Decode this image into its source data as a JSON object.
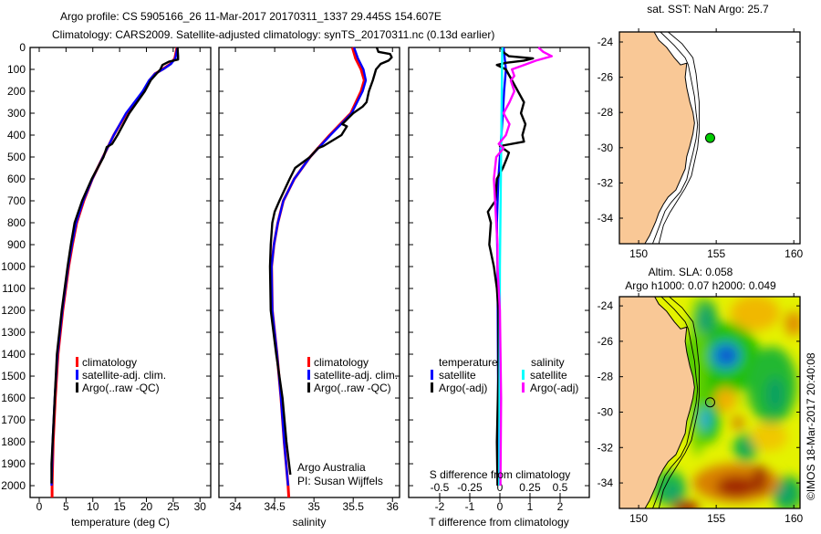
{
  "title": {
    "line1": "Argo profile: CS 5905166_26 11-Mar-2017 20170311_1337 29.445S 154.607E",
    "line2": "Climatology: CARS2009. Satellite-adjusted climatology: synTS_20170311.nc (0.13d earlier)"
  },
  "depth_ticks": [
    "0",
    "100",
    "200",
    "300",
    "400",
    "500",
    "600",
    "700",
    "800",
    "900",
    "1000",
    "1100",
    "1200",
    "1300",
    "1400",
    "1500",
    "1600",
    "1700",
    "1800",
    "1900",
    "2000"
  ],
  "chart_data": [
    {
      "type": "line",
      "panel": "temperature",
      "xlabel": "temperature (deg C)",
      "ylabel": "depth",
      "xlim": [
        -1.7,
        32
      ],
      "ylim": [
        2054,
        0
      ],
      "xticks": [
        0,
        5,
        10,
        15,
        20,
        25,
        30
      ],
      "legend": [
        {
          "label": "climatology",
          "color": "#ff0000"
        },
        {
          "label": "satellite-adj. clim.",
          "color": "#0000ff"
        },
        {
          "label": "Argo(..raw -QC)",
          "color": "#000000"
        }
      ],
      "series": [
        {
          "name": "climatology",
          "color": "#ff0000",
          "depth": [
            0,
            50,
            75,
            100,
            120,
            150,
            200,
            300,
            400,
            450,
            500,
            600,
            700,
            800,
            900,
            1000,
            1200,
            1400,
            1600,
            1800,
            2000,
            2054
          ],
          "values": [
            25.7,
            25.3,
            24.5,
            23.0,
            21.6,
            20.6,
            19.4,
            16.3,
            13.9,
            12.9,
            11.9,
            9.9,
            8.3,
            7.0,
            6.2,
            5.5,
            4.4,
            3.5,
            3.0,
            2.6,
            2.4,
            2.4
          ]
        },
        {
          "name": "satellite-adj. clim.",
          "color": "#0000ff",
          "depth": [
            0,
            50,
            75,
            100,
            120,
            150,
            200,
            300,
            400,
            450,
            500,
            600,
            700,
            800,
            900,
            1000,
            1200,
            1400,
            1600,
            1800,
            2000
          ],
          "values": [
            25.8,
            25.4,
            24.6,
            23.1,
            21.6,
            20.5,
            19.3,
            16.2,
            13.9,
            12.9,
            11.9,
            9.9,
            8.2,
            6.9,
            6.1,
            5.4,
            4.3,
            3.4,
            2.9,
            2.5,
            2.3
          ]
        },
        {
          "name": "Argo(..raw -QC)",
          "color": "#000000",
          "depth": [
            0,
            40,
            55,
            65,
            80,
            100,
            150,
            200,
            300,
            400,
            440,
            455,
            500,
            600,
            700,
            800,
            900,
            1000,
            1200,
            1400,
            1600,
            1800,
            1900,
            1990
          ],
          "values": [
            25.8,
            25.9,
            25.9,
            24.2,
            23.0,
            22.6,
            20.8,
            19.7,
            16.8,
            14.6,
            13.6,
            12.6,
            12.0,
            9.8,
            8.0,
            6.6,
            5.9,
            5.3,
            4.2,
            3.3,
            2.9,
            2.5,
            2.3,
            2.3
          ]
        }
      ]
    },
    {
      "type": "line",
      "panel": "salinity",
      "xlabel": "salinity",
      "ylabel": "depth",
      "xlim": [
        33.79,
        36.09
      ],
      "ylim": [
        2054,
        0
      ],
      "xticks": [
        34,
        34.5,
        35,
        35.5,
        36
      ],
      "legend": [
        {
          "label": "climatology",
          "color": "#ff0000"
        },
        {
          "label": "satellite-adj. clim.",
          "color": "#0000ff"
        },
        {
          "label": "Argo(..raw -QC)",
          "color": "#000000"
        }
      ],
      "annotation": [
        "Argo Australia",
        "PI: Susan Wijffels"
      ],
      "series": [
        {
          "name": "climatology",
          "color": "#ff0000",
          "depth": [
            0,
            50,
            100,
            150,
            200,
            300,
            400,
            500,
            600,
            700,
            800,
            900,
            1000,
            1200,
            1400,
            1600,
            1800,
            2000,
            2054
          ],
          "values": [
            35.49,
            35.53,
            35.6,
            35.64,
            35.6,
            35.47,
            35.2,
            34.95,
            34.75,
            34.61,
            34.54,
            34.49,
            34.46,
            34.47,
            34.53,
            34.58,
            34.62,
            34.67,
            34.68
          ]
        },
        {
          "name": "satellite-adj. clim.",
          "color": "#0000ff",
          "depth": [
            0,
            50,
            100,
            150,
            200,
            300,
            400,
            500,
            600,
            700,
            800,
            900,
            1000,
            1200,
            1400,
            1600,
            1800,
            2000
          ],
          "values": [
            35.51,
            35.56,
            35.63,
            35.66,
            35.62,
            35.48,
            35.21,
            34.95,
            34.75,
            34.61,
            34.54,
            34.49,
            34.46,
            34.47,
            34.53,
            34.58,
            34.62,
            34.67
          ]
        },
        {
          "name": "Argo(..raw -QC)",
          "color": "#000000",
          "depth": [
            0,
            20,
            30,
            45,
            60,
            75,
            100,
            150,
            200,
            250,
            270,
            300,
            350,
            360,
            400,
            450,
            460,
            500,
            550,
            600,
            700,
            750,
            800,
            900,
            1000,
            1200,
            1400,
            1600,
            1800,
            1950
          ],
          "values": [
            35.8,
            35.82,
            35.97,
            35.99,
            35.95,
            35.85,
            35.79,
            35.75,
            35.7,
            35.67,
            35.62,
            35.5,
            35.36,
            35.42,
            35.35,
            35.12,
            35.05,
            34.95,
            34.76,
            34.69,
            34.56,
            34.5,
            34.47,
            34.45,
            34.44,
            34.45,
            34.52,
            34.6,
            34.65,
            34.7
          ]
        }
      ]
    },
    {
      "type": "line",
      "panel": "difference",
      "xlabel": "T difference from climatology",
      "x2label": "S difference from climatology",
      "ylabel": "depth",
      "xlim": [
        -3.03,
        2.97
      ],
      "x2lim": [
        -0.7575,
        0.7425
      ],
      "ylim": [
        2054,
        0
      ],
      "xticks": [
        -2,
        -1,
        0,
        1,
        2
      ],
      "x2ticks": [
        -0.5,
        -0.25,
        0,
        0.25,
        0.5
      ],
      "legend_headers": [
        "temperature",
        "salinity"
      ],
      "legend": [
        {
          "label": "satellite",
          "color": "#0000ff",
          "group": "temperature"
        },
        {
          "label": "Argo(-adj)",
          "color": "#000000",
          "group": "temperature"
        },
        {
          "label": "satellite",
          "color": "#00ffff",
          "group": "salinity"
        },
        {
          "label": "Argo(-adj)",
          "color": "#ff00ff",
          "group": "salinity"
        }
      ],
      "series": [
        {
          "name": "T satellite",
          "axis": "T",
          "color": "#0000ff",
          "depth": [
            0,
            100,
            200,
            300,
            400,
            500,
            600,
            800,
            1000,
            1500,
            2000
          ],
          "values": [
            0.12,
            0.2,
            0.14,
            0.1,
            0.05,
            0.0,
            -0.05,
            -0.1,
            -0.08,
            -0.06,
            -0.05
          ]
        },
        {
          "name": "T Argo(-adj)",
          "axis": "T",
          "color": "#000000",
          "depth": [
            0,
            20,
            40,
            50,
            60,
            70,
            80,
            100,
            150,
            200,
            250,
            300,
            350,
            400,
            430,
            450,
            480,
            500,
            550,
            600,
            700,
            750,
            800,
            900,
            1000,
            1100,
            1200,
            1500,
            1800,
            2000
          ],
          "values": [
            0.05,
            0.1,
            0.3,
            1.1,
            0.8,
            0.2,
            -0.1,
            0.2,
            0.4,
            0.6,
            0.8,
            0.7,
            0.85,
            0.75,
            0.8,
            0.0,
            0.3,
            0.25,
            0.1,
            -0.1,
            -0.15,
            -0.4,
            -0.3,
            -0.35,
            -0.2,
            -0.1,
            -0.05,
            -0.05,
            -0.1,
            -0.08
          ]
        },
        {
          "name": "S satellite",
          "axis": "S",
          "color": "#00ffff",
          "depth": [
            0,
            500,
            1000,
            2000
          ],
          "values": [
            0.02,
            0.01,
            0.0,
            -0.005
          ]
        },
        {
          "name": "S Argo(-adj)",
          "axis": "S",
          "color": "#ff00ff",
          "depth": [
            0,
            20,
            40,
            60,
            80,
            100,
            130,
            150,
            200,
            250,
            300,
            350,
            400,
            440,
            460,
            500,
            600,
            700,
            800,
            900,
            1000,
            1200,
            1600,
            2000
          ],
          "values": [
            0.32,
            0.36,
            0.43,
            0.3,
            0.2,
            0.1,
            0.12,
            0.09,
            0.12,
            0.08,
            0.03,
            0.08,
            0.05,
            -0.01,
            0.03,
            -0.03,
            -0.05,
            -0.04,
            -0.03,
            -0.02,
            -0.02,
            0.0,
            0.01,
            0.005
          ]
        }
      ]
    }
  ],
  "maps": {
    "lon_ticks": [
      "150",
      "155",
      "160"
    ],
    "lat_ticks": [
      "-24",
      "-26",
      "-28",
      "-30",
      "-32",
      "-34"
    ],
    "sst": {
      "title": "sat. SST: NaN Argo: 25.7"
    },
    "sla": {
      "title1": "Altim. SLA: 0.058",
      "title2": "Argo h1000: 0.07 h2000: 0.049"
    },
    "float_position": {
      "lon": 154.607,
      "lat": -29.445
    },
    "land_color": "#f9c896",
    "marker_color": "#00cc00"
  },
  "credit": "©IMOS 18-Mar-2017 20:40:08"
}
